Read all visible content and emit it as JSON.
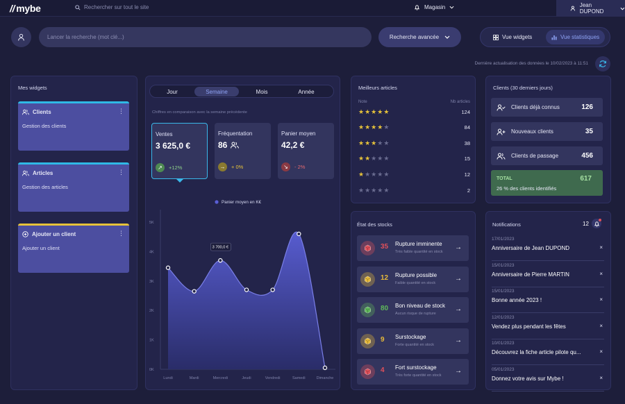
{
  "app": {
    "logo": "mybe"
  },
  "topbar": {
    "site_search": "Rechercher sur tout le site",
    "store": "Magasin",
    "user": "Jean DUPOND"
  },
  "toolbar": {
    "search_placeholder": "Lancer la recherche (mot clé...)",
    "advanced_search": "Recherche avancée",
    "view_widgets": "Vue widgets",
    "view_stats": "Vue statistiques"
  },
  "refresh": {
    "text": "Dernière actualisation des données le 10/02/2023 à 11:51"
  },
  "widgets": {
    "title": "Mes widgets",
    "cards": [
      {
        "title": "Clients",
        "desc": "Gestion des clients",
        "color": "#2fb9e6"
      },
      {
        "title": "Articles",
        "desc": "Gestion des articles",
        "color": "#2fb9e6"
      },
      {
        "title": "Ajouter un client",
        "desc": "Ajouter un client",
        "color": "#e6c23a"
      }
    ]
  },
  "stats": {
    "tabs": [
      "Jour",
      "Semaine",
      "Mois",
      "Année"
    ],
    "active_tab": "Semaine",
    "comparison": "Chiffres en comparaison avec la semaine précédente",
    "kpis": [
      {
        "label": "Ventes",
        "value": "3 625,0 €",
        "change": "+12%",
        "trend": "up"
      },
      {
        "label": "Fréquentation",
        "value": "86",
        "change": "+ 0%",
        "trend": "flat"
      },
      {
        "label": "Panier moyen",
        "value": "42,2 €",
        "change": "- 2%",
        "trend": "down"
      }
    ]
  },
  "chart_data": {
    "type": "area",
    "legend": "Panier moyen en K€",
    "categories": [
      "Lundi",
      "Mardi",
      "Mercredi",
      "Jeudi",
      "Vendredi",
      "Samedi",
      "Dimanche"
    ],
    "series": [
      {
        "name": "Panier moyen en K€",
        "values": [
          3.45,
          2.65,
          3.7,
          2.7,
          2.7,
          4.6,
          0.05
        ]
      }
    ],
    "yticks": [
      "0K",
      "1K",
      "2K",
      "3K",
      "4K",
      "5K"
    ],
    "ylim": [
      0,
      5
    ],
    "tooltip": "3 700,0 €",
    "tooltip_index": 2,
    "accent": "#5a5fd6"
  },
  "best": {
    "title": "Meilleurs articles",
    "col_note": "Note",
    "col_count": "Nb articles",
    "rows": [
      {
        "stars": 5,
        "count": "124"
      },
      {
        "stars": 4,
        "count": "84"
      },
      {
        "stars": 3,
        "count": "38"
      },
      {
        "stars": 2,
        "count": "15"
      },
      {
        "stars": 1,
        "count": "12"
      },
      {
        "stars": 0,
        "count": "2"
      }
    ]
  },
  "clients": {
    "title": "Clients (30 derniers jours)",
    "rows": [
      {
        "label": "Clients déjà connus",
        "value": "126"
      },
      {
        "label": "Nouveaux clients",
        "value": "35"
      },
      {
        "label": "Clients de passage",
        "value": "456"
      }
    ],
    "total_label": "TOTAL",
    "total_value": "617",
    "total_note": "26 % des clients identifiés"
  },
  "stocks": {
    "title": "État des stocks",
    "rows": [
      {
        "count": "35",
        "title": "Rupture imminente",
        "sub": "Très faible quantité en stock",
        "color": "#e0505a"
      },
      {
        "count": "12",
        "title": "Rupture possible",
        "sub": "Faible quantité en stock",
        "color": "#e6b93a"
      },
      {
        "count": "80",
        "title": "Bon niveau de stock",
        "sub": "Aucun risque de rupture",
        "color": "#5fb85a"
      },
      {
        "count": "9",
        "title": "Surstockage",
        "sub": "Forte quantité en stock",
        "color": "#e6b93a"
      },
      {
        "count": "4",
        "title": "Fort surstockage",
        "sub": "Très forte quantité en stock",
        "color": "#e0505a"
      }
    ]
  },
  "notifications": {
    "title": "Notifications",
    "count": "12",
    "items": [
      {
        "date": "17/01/2023",
        "text": "Anniversaire de Jean DUPOND"
      },
      {
        "date": "15/01/2023",
        "text": "Anniversaire de Pierre MARTIN"
      },
      {
        "date": "15/01/2023",
        "text": "Bonne année 2023 !"
      },
      {
        "date": "12/01/2023",
        "text": "Vendez plus pendant les fêtes"
      },
      {
        "date": "10/01/2023",
        "text": "Découvrez la fiche article pilote qu..."
      },
      {
        "date": "05/01/2023",
        "text": "Donnez votre avis sur Mybe !"
      }
    ]
  }
}
